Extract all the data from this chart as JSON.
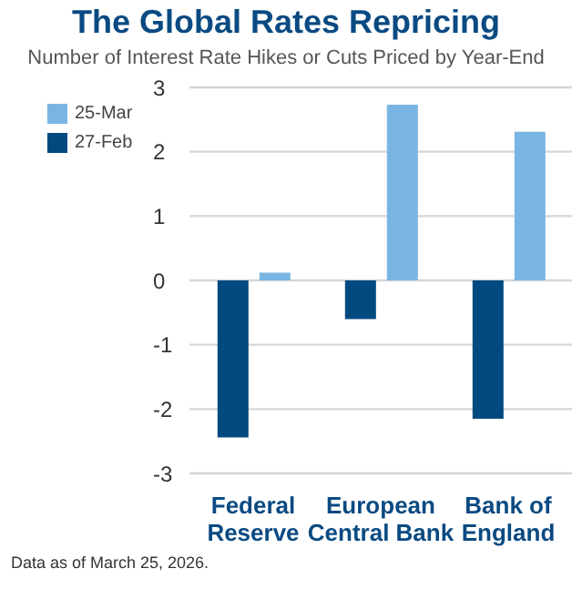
{
  "chart_data": {
    "type": "bar",
    "title": "The Global Rates Repricing",
    "subtitle": "Number of Interest Rate Hikes or Cuts Priced by Year-End",
    "categories": [
      "Federal Reserve",
      "European Central Bank",
      "Bank of England"
    ],
    "series": [
      {
        "name": "27-Feb",
        "color": "#004a80",
        "values": [
          -2.44,
          -0.6,
          -2.15
        ]
      },
      {
        "name": "25-Mar",
        "color": "#79b5e2",
        "values": [
          0.12,
          2.73,
          2.31
        ]
      }
    ],
    "ylim": [
      -3,
      3
    ],
    "yticks": [
      -3,
      -2,
      -1,
      0,
      1,
      2,
      3
    ],
    "grid": "y",
    "legend": "top left",
    "annotations": [
      "Data as of March 25, 2026."
    ]
  }
}
